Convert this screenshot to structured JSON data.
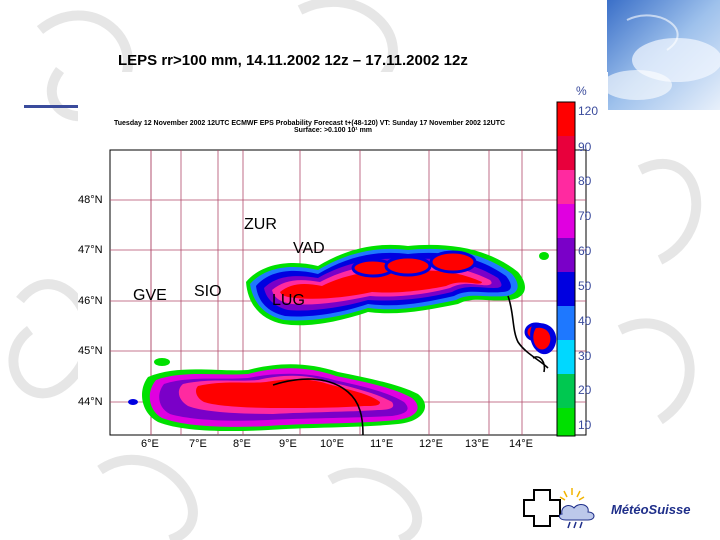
{
  "slide": {
    "title": "LEPS rr>100 mm, 14.11.2002 12z – 17.11.2002 12z"
  },
  "map": {
    "header_line1": "Tuesday 12 November 2002 12UTC ECMWF  EPS Probability Forecast t+(48-120) VT: Sunday 17 November 2002 12UTC",
    "header_line2": "Surface:  >0.100 10¹ mm",
    "latitude_labels": [
      "48°N",
      "47°N",
      "46°N",
      "45°N",
      "44°N"
    ],
    "longitude_labels": [
      "6°E",
      "7°E",
      "8°E",
      "9°E",
      "10°E",
      "11°E",
      "12°E",
      "13°E",
      "14°E"
    ],
    "cities": {
      "zur": "ZUR",
      "vad": "VAD",
      "gve": "GVE",
      "sio": "SIO",
      "lug": "LUG"
    }
  },
  "colorbar": {
    "unit": "%",
    "labels": [
      "120",
      "90",
      "80",
      "70",
      "60",
      "50",
      "40",
      "30",
      "20",
      "10"
    ],
    "colors": [
      "#ff0000",
      "#e8003c",
      "#ff2aa0",
      "#e000e0",
      "#7a00c8",
      "#0000e0",
      "#1e78ff",
      "#00d8ff",
      "#00c850",
      "#00e000"
    ]
  },
  "logo": {
    "text": "MétéoSuisse",
    "accent_color": "#1f2f8a"
  }
}
